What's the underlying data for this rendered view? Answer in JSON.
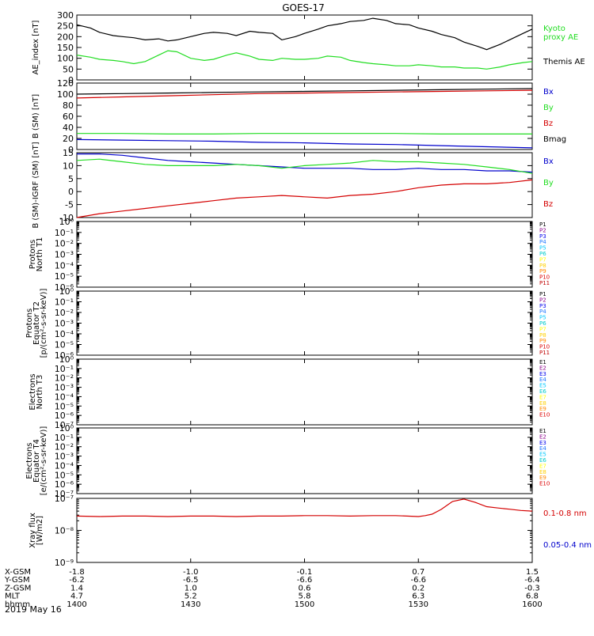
{
  "title": "GOES-17",
  "date": "2019 May 16",
  "colors": {
    "black": "#000000",
    "red": "#d40000",
    "green": "#22dd22",
    "blue": "#0000cc",
    "protons": [
      "#000000",
      "#8b008b",
      "#0000ee",
      "#1f77ff",
      "#00c8ff",
      "#00cccc",
      "#ffff00",
      "#ffd000",
      "#ff8800",
      "#dd0000",
      "#c00000"
    ],
    "electrons": [
      "#000000",
      "#8b008b",
      "#0000ee",
      "#1f77ff",
      "#00c8ff",
      "#00cccc",
      "#ffff00",
      "#ffd000",
      "#ff8800",
      "#dd0000"
    ]
  },
  "chart_data": [
    {
      "type": "line",
      "id": "ae",
      "ylabel": "AE_index [nT]",
      "ylim": [
        0,
        300
      ],
      "yticks": [
        "0",
        "50",
        "100",
        "150",
        "200",
        "250",
        "300"
      ],
      "xlim": [
        1400,
        1600
      ],
      "series": [
        {
          "name": "Themis AE",
          "color": "black",
          "x": [
            1400,
            1406,
            1410,
            1416,
            1420,
            1425,
            1430,
            1436,
            1440,
            1444,
            1450,
            1456,
            1460,
            1466,
            1470,
            1476,
            1480,
            1486,
            1490,
            1496,
            1500,
            1506,
            1510,
            1516,
            1520,
            1526,
            1530,
            1536,
            1540,
            1546,
            1550,
            1556,
            1560,
            1566,
            1570,
            1576,
            1580,
            1586,
            1590,
            1596,
            1600
          ],
          "values": [
            255,
            240,
            220,
            205,
            200,
            195,
            185,
            190,
            180,
            185,
            200,
            215,
            220,
            215,
            205,
            225,
            220,
            215,
            185,
            200,
            215,
            235,
            250,
            260,
            270,
            275,
            285,
            275,
            260,
            255,
            240,
            225,
            210,
            195,
            175,
            155,
            140,
            165,
            185,
            215,
            235
          ]
        },
        {
          "name": "Kyoto proxy AE",
          "color": "green",
          "x": [
            1400,
            1406,
            1410,
            1416,
            1420,
            1425,
            1430,
            1436,
            1440,
            1444,
            1450,
            1456,
            1460,
            1466,
            1470,
            1476,
            1480,
            1486,
            1490,
            1496,
            1500,
            1506,
            1510,
            1516,
            1520,
            1526,
            1530,
            1536,
            1540,
            1546,
            1550,
            1556,
            1560,
            1566,
            1570,
            1576,
            1580,
            1586,
            1590,
            1596,
            1600
          ],
          "values": [
            115,
            105,
            95,
            90,
            85,
            75,
            85,
            115,
            135,
            130,
            100,
            90,
            95,
            115,
            125,
            110,
            95,
            90,
            100,
            95,
            95,
            100,
            110,
            105,
            90,
            80,
            75,
            70,
            65,
            65,
            70,
            65,
            60,
            60,
            55,
            55,
            50,
            60,
            70,
            80,
            85
          ]
        }
      ],
      "legend": [
        "Kyoto proxy AE",
        "Themis AE"
      ]
    },
    {
      "type": "line",
      "id": "bsm",
      "ylabel": "B (SM) [nT]",
      "ylim": [
        0,
        120
      ],
      "yticks": [
        "0",
        "20",
        "40",
        "60",
        "80",
        "100",
        "120"
      ],
      "xlim": [
        1400,
        1600
      ],
      "series": [
        {
          "name": "Bx",
          "color": "blue",
          "x": [
            1400,
            1420,
            1440,
            1460,
            1480,
            1500,
            1520,
            1540,
            1560,
            1580,
            1600
          ],
          "values": [
            18,
            17,
            16,
            15,
            13,
            12,
            10,
            9,
            7,
            5,
            3
          ]
        },
        {
          "name": "By",
          "color": "green",
          "x": [
            1400,
            1420,
            1440,
            1460,
            1480,
            1500,
            1520,
            1540,
            1560,
            1580,
            1600
          ],
          "values": [
            29,
            29,
            28,
            28,
            29,
            29,
            29,
            29,
            28,
            28,
            28
          ]
        },
        {
          "name": "Bz",
          "color": "red",
          "x": [
            1400,
            1420,
            1440,
            1460,
            1480,
            1500,
            1520,
            1540,
            1560,
            1580,
            1600
          ],
          "values": [
            93,
            95,
            97,
            99,
            101,
            102,
            103,
            104,
            105,
            106,
            107
          ]
        },
        {
          "name": "Bmag",
          "color": "black",
          "x": [
            1400,
            1420,
            1440,
            1460,
            1480,
            1500,
            1520,
            1540,
            1560,
            1580,
            1600
          ],
          "values": [
            100,
            101,
            102,
            103,
            104,
            105,
            106,
            107,
            108,
            109,
            110
          ]
        }
      ],
      "legend": [
        "Bx",
        "By",
        "Bz",
        "Bmag"
      ]
    },
    {
      "type": "line",
      "id": "bigrf",
      "ylabel": "B (SM)-IGRF (SM) [nT]",
      "ylim": [
        -10,
        15
      ],
      "yticks": [
        "-10",
        "-5",
        "0",
        "5",
        "10",
        "15"
      ],
      "xlim": [
        1400,
        1600
      ],
      "series": [
        {
          "name": "Bx",
          "color": "blue",
          "x": [
            1400,
            1410,
            1420,
            1430,
            1440,
            1450,
            1460,
            1470,
            1480,
            1490,
            1500,
            1510,
            1520,
            1530,
            1540,
            1550,
            1560,
            1570,
            1580,
            1590,
            1600
          ],
          "values": [
            14.5,
            14.5,
            14,
            13,
            12,
            11.5,
            11,
            10.5,
            10,
            9.5,
            9,
            9,
            9,
            8.5,
            8.5,
            9,
            8.5,
            8.5,
            8,
            8,
            7.5
          ]
        },
        {
          "name": "By",
          "color": "green",
          "x": [
            1400,
            1410,
            1420,
            1430,
            1440,
            1450,
            1460,
            1470,
            1480,
            1490,
            1500,
            1510,
            1520,
            1530,
            1540,
            1550,
            1560,
            1570,
            1580,
            1590,
            1600
          ],
          "values": [
            12,
            12.5,
            11.5,
            10.5,
            10,
            10,
            10,
            10.5,
            10,
            9,
            10,
            10.5,
            11,
            12,
            11.5,
            11.5,
            11,
            10.5,
            9.5,
            8.5,
            7
          ]
        },
        {
          "name": "Bz",
          "color": "red",
          "x": [
            1400,
            1410,
            1420,
            1430,
            1440,
            1450,
            1460,
            1470,
            1480,
            1490,
            1500,
            1510,
            1520,
            1530,
            1540,
            1550,
            1560,
            1570,
            1580,
            1590,
            1600
          ],
          "values": [
            -10,
            -8.5,
            -7.5,
            -6.5,
            -5.5,
            -4.5,
            -3.5,
            -2.5,
            -2,
            -1.5,
            -2,
            -2.5,
            -1.5,
            -1,
            0,
            1.5,
            2.5,
            3,
            3,
            3.5,
            4.5
          ]
        }
      ],
      "legend": [
        "Bx",
        "By",
        "Bz"
      ]
    },
    {
      "type": "line",
      "id": "pn",
      "ylabel": [
        "Protons",
        "North T1"
      ],
      "scale": "log",
      "yticks": [
        "10⁰",
        "10⁻¹",
        "10⁻²",
        "10⁻³",
        "10⁻⁴",
        "10⁻⁵",
        "10⁻⁶"
      ],
      "legend": [
        "P1",
        "P2",
        "P3",
        "P4",
        "P5",
        "P6",
        "P7",
        "P8",
        "P9",
        "P10",
        "P11"
      ],
      "series": []
    },
    {
      "type": "line",
      "id": "pe",
      "ylabel": [
        "Protons",
        "Equator T2",
        "[p/(cm²-s-sr-keV)]"
      ],
      "scale": "log",
      "yticks": [
        "10⁰",
        "10⁻¹",
        "10⁻²",
        "10⁻³",
        "10⁻⁴",
        "10⁻⁵",
        "10⁻⁶"
      ],
      "legend": [
        "P1",
        "P2",
        "P3",
        "P4",
        "P5",
        "P6",
        "P7",
        "P8",
        "P9",
        "P10",
        "P11"
      ],
      "series": []
    },
    {
      "type": "line",
      "id": "en",
      "ylabel": [
        "Electrons",
        "North T3"
      ],
      "scale": "log",
      "yticks": [
        "10⁰",
        "10⁻¹",
        "10⁻²",
        "10⁻³",
        "10⁻⁴",
        "10⁻⁵",
        "10⁻⁶",
        "10⁻⁷"
      ],
      "legend": [
        "E1",
        "E2",
        "E3",
        "E4",
        "E5",
        "E6",
        "E7",
        "E8",
        "E9",
        "E10"
      ],
      "series": []
    },
    {
      "type": "line",
      "id": "ee",
      "ylabel": [
        "Electrons",
        "Equator T4",
        "[e/(cm²-s-sr-keV)]"
      ],
      "scale": "log",
      "yticks": [
        "10⁰",
        "10⁻¹",
        "10⁻²",
        "10⁻³",
        "10⁻⁴",
        "10⁻⁵",
        "10⁻⁶",
        "10⁻⁷"
      ],
      "legend": [
        "E1",
        "E2",
        "E3",
        "E4",
        "E5",
        "E6",
        "E7",
        "E8",
        "E9",
        "E10"
      ],
      "series": []
    },
    {
      "type": "line",
      "id": "xray",
      "ylabel": [
        "Xray flux",
        "[W/m2]"
      ],
      "scale": "log",
      "ylim": [
        1e-09,
        1e-07
      ],
      "yticks": [
        "10⁻⁷",
        "10⁻⁸",
        "10⁻⁹"
      ],
      "xlim": [
        1400,
        1600
      ],
      "series": [
        {
          "name": "0.1-0.8 nm",
          "color": "red",
          "x": [
            1400,
            1410,
            1420,
            1430,
            1440,
            1450,
            1460,
            1470,
            1480,
            1490,
            1500,
            1510,
            1520,
            1530,
            1540,
            1545,
            1550,
            1553,
            1556,
            1560,
            1565,
            1570,
            1575,
            1580,
            1585,
            1590,
            1595,
            1600
          ],
          "values": [
            2.8e-08,
            2.7e-08,
            2.8e-08,
            2.8e-08,
            2.7e-08,
            2.8e-08,
            2.8e-08,
            2.7e-08,
            2.8e-08,
            2.8e-08,
            2.9e-08,
            2.9e-08,
            2.8e-08,
            2.9e-08,
            2.9e-08,
            2.8e-08,
            2.7e-08,
            2.9e-08,
            3.2e-08,
            4.5e-08,
            8e-08,
            9.5e-08,
            7.5e-08,
            5.5e-08,
            5e-08,
            4.6e-08,
            4.2e-08,
            4e-08
          ]
        },
        {
          "name": "0.05-0.4 nm",
          "color": "blue",
          "x": [],
          "values": []
        }
      ],
      "legend": [
        "0.1-0.8 nm",
        "0.05-0.4 nm"
      ]
    }
  ],
  "x_axis": {
    "rows": [
      {
        "label": "X-GSM",
        "values": [
          "-1.8",
          "-1.0",
          "-0.1",
          "0.7",
          "1.5"
        ]
      },
      {
        "label": "Y-GSM",
        "values": [
          "-6.2",
          "-6.5",
          "-6.6",
          "-6.6",
          "-6.4"
        ]
      },
      {
        "label": "Z-GSM",
        "values": [
          "1.4",
          "1.0",
          "0.6",
          "0.2",
          "-0.3"
        ]
      },
      {
        "label": "MLT",
        "values": [
          "4.7",
          "5.2",
          "5.8",
          "6.3",
          "6.8"
        ]
      },
      {
        "label": "hhmm",
        "values": [
          "1400",
          "1430",
          "1500",
          "1530",
          "1600"
        ]
      }
    ]
  }
}
